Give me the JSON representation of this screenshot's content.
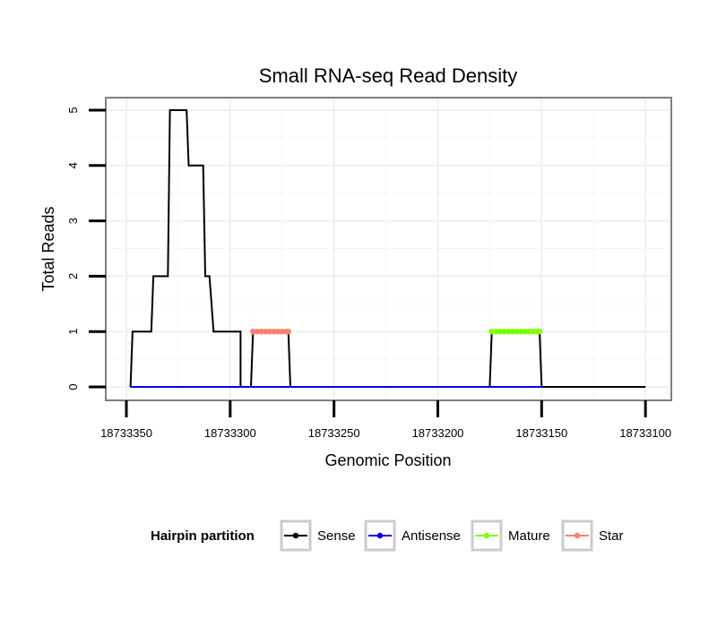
{
  "chart_data": {
    "type": "line",
    "title": "Small RNA-seq Read Density",
    "xlabel": "Genomic Position",
    "ylabel": "Total Reads",
    "xlim": [
      18733350,
      18733100
    ],
    "ylim": [
      0,
      5
    ],
    "x_ticks": [
      {
        "value": 18733350,
        "label": "18733350"
      },
      {
        "value": 18733300,
        "label": "18733300"
      },
      {
        "value": 18733250,
        "label": "18733250"
      },
      {
        "value": 18733200,
        "label": "18733200"
      },
      {
        "value": 18733150,
        "label": "18733150"
      },
      {
        "value": 18733100,
        "label": "18733100"
      }
    ],
    "y_ticks": [
      {
        "value": 0,
        "label": "0"
      },
      {
        "value": 1,
        "label": "1"
      },
      {
        "value": 2,
        "label": "2"
      },
      {
        "value": 3,
        "label": "3"
      },
      {
        "value": 4,
        "label": "4"
      },
      {
        "value": 5,
        "label": "5"
      }
    ],
    "grid": true,
    "legend": {
      "title": "Hairpin partition",
      "placement": "bottom",
      "entries": [
        "Sense",
        "Antisense",
        "Mature",
        "Star"
      ]
    },
    "series": [
      {
        "name": "Sense",
        "color": "#000000",
        "points": [
          [
            18733348,
            0
          ],
          [
            18733347,
            1
          ],
          [
            18733338,
            1
          ],
          [
            18733337,
            2
          ],
          [
            18733330,
            2
          ],
          [
            18733329,
            5
          ],
          [
            18733321,
            5
          ],
          [
            18733320,
            4
          ],
          [
            18733313,
            4
          ],
          [
            18733312,
            2
          ],
          [
            18733310,
            2
          ],
          [
            18733308,
            1
          ],
          [
            18733295,
            1
          ],
          [
            18733295,
            0
          ],
          [
            18733290,
            0
          ],
          [
            18733289,
            1
          ],
          [
            18733272,
            1
          ],
          [
            18733271,
            0
          ],
          [
            18733175,
            0
          ],
          [
            18733174,
            1
          ],
          [
            18733151,
            1
          ],
          [
            18733150,
            0
          ],
          [
            18733100,
            0
          ]
        ]
      },
      {
        "name": "Antisense",
        "color": "#0000ff",
        "points": [
          [
            18733348,
            0
          ],
          [
            18733150,
            0
          ]
        ]
      },
      {
        "name": "Mature",
        "color": "#7fff00",
        "points": [
          [
            18733174,
            1
          ],
          [
            18733172,
            1
          ],
          [
            18733170,
            1
          ],
          [
            18733168,
            1
          ],
          [
            18733166,
            1
          ],
          [
            18733164,
            1
          ],
          [
            18733162,
            1
          ],
          [
            18733160,
            1
          ],
          [
            18733158,
            1
          ],
          [
            18733156,
            1
          ],
          [
            18733154,
            1
          ],
          [
            18733152,
            1
          ],
          [
            18733151,
            1
          ]
        ]
      },
      {
        "name": "Star",
        "color": "#fa8072",
        "points": [
          [
            18733289,
            1
          ],
          [
            18733287,
            1
          ],
          [
            18733285,
            1
          ],
          [
            18733283,
            1
          ],
          [
            18733281,
            1
          ],
          [
            18733279,
            1
          ],
          [
            18733277,
            1
          ],
          [
            18733275,
            1
          ],
          [
            18733273,
            1
          ],
          [
            18733272,
            1
          ]
        ]
      }
    ]
  }
}
